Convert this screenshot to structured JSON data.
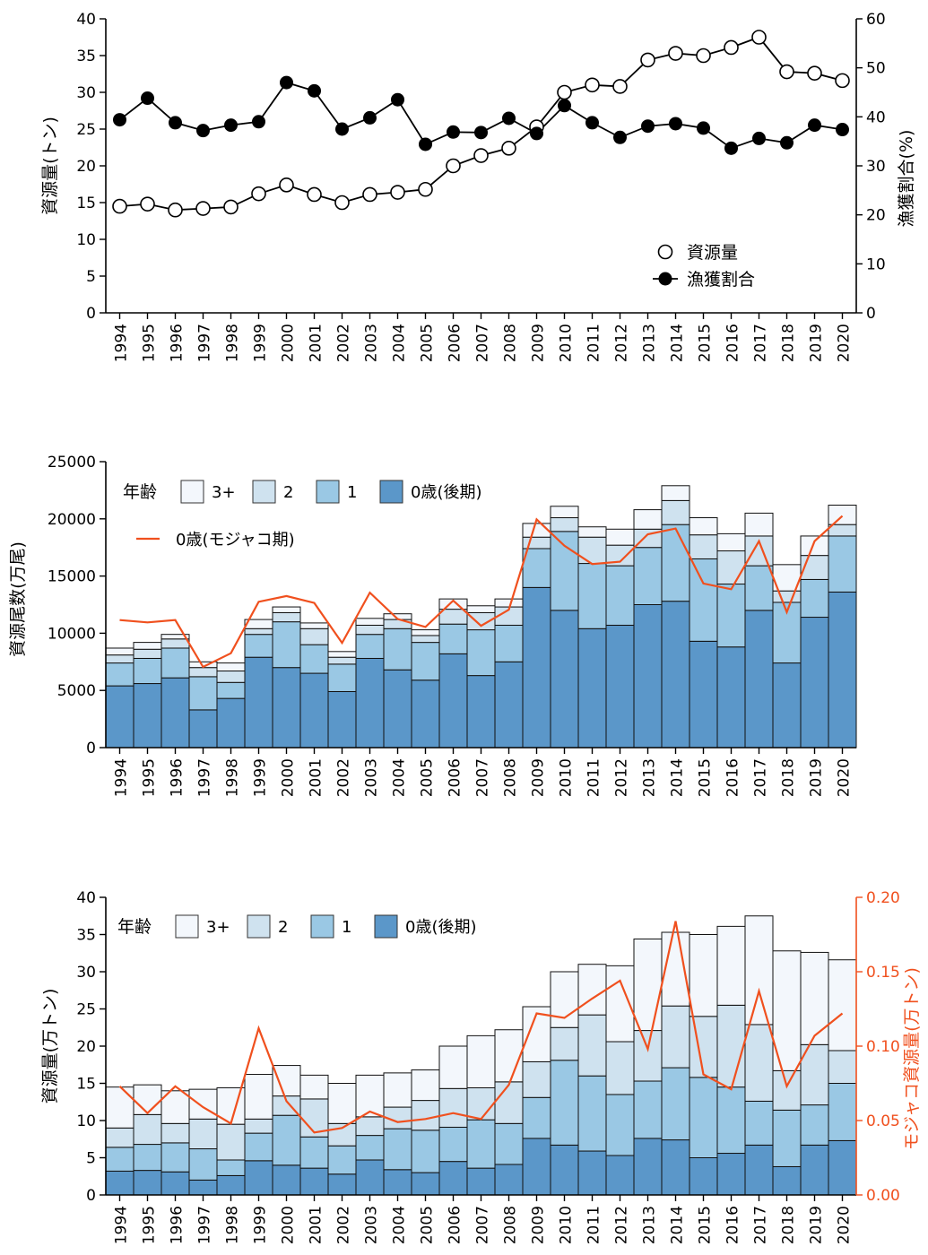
{
  "chart_data": [
    {
      "type": "line",
      "x": [
        "1994",
        "1995",
        "1996",
        "1997",
        "1998",
        "1999",
        "2000",
        "2001",
        "2002",
        "2003",
        "2004",
        "2005",
        "2006",
        "2007",
        "2008",
        "2009",
        "2010",
        "2011",
        "2012",
        "2013",
        "2014",
        "2015",
        "2016",
        "2017",
        "2018",
        "2019",
        "2020"
      ],
      "series": [
        {
          "name": "資源量",
          "axis": "left",
          "marker": "open-circle",
          "values": [
            14.5,
            14.8,
            14.0,
            14.2,
            14.4,
            16.2,
            17.4,
            16.1,
            15.0,
            16.1,
            16.4,
            16.8,
            20.0,
            21.4,
            22.4,
            25.3,
            30.0,
            31.0,
            30.8,
            34.4,
            35.3,
            35.0,
            36.1,
            37.5,
            32.8,
            32.6,
            31.6
          ]
        },
        {
          "name": "漁獲割合",
          "axis": "right",
          "marker": "filled-circle",
          "values": [
            39.4,
            43.8,
            38.8,
            37.2,
            38.3,
            39.0,
            47.0,
            45.3,
            37.5,
            39.8,
            43.5,
            34.4,
            36.9,
            36.8,
            39.7,
            36.6,
            42.3,
            38.8,
            35.8,
            38.1,
            38.6,
            37.7,
            33.6,
            35.6,
            34.7,
            38.3,
            37.4
          ]
        }
      ],
      "ylabel_left": "資源量(トン)",
      "ylabel_right": "漁獲割合(%)",
      "ylim_left": [
        0,
        40
      ],
      "yticks_left": [
        0,
        5,
        10,
        15,
        20,
        25,
        30,
        35,
        40
      ],
      "ylim_right": [
        0,
        60
      ],
      "yticks_right": [
        0,
        10,
        20,
        30,
        40,
        50,
        60
      ],
      "legend": [
        "資源量",
        "漁獲割合"
      ],
      "legend_position": "bottom-right",
      "grid": false
    },
    {
      "type": "bar",
      "stacked": true,
      "x": [
        "1994",
        "1995",
        "1996",
        "1997",
        "1998",
        "1999",
        "2000",
        "2001",
        "2002",
        "2003",
        "2004",
        "2005",
        "2006",
        "2007",
        "2008",
        "2009",
        "2010",
        "2011",
        "2012",
        "2013",
        "2014",
        "2015",
        "2016",
        "2017",
        "2018",
        "2019",
        "2020"
      ],
      "legend_title": "年齢",
      "series": [
        {
          "name": "0歳(後期)",
          "color": "#5b97c9",
          "values": [
            5400,
            5600,
            6100,
            3300,
            4300,
            7900,
            7000,
            6500,
            4900,
            7800,
            6800,
            5900,
            8200,
            6300,
            7500,
            14000,
            12000,
            10400,
            10700,
            12500,
            12800,
            9300,
            8800,
            12000,
            7400,
            11400,
            13600
          ]
        },
        {
          "name": "1",
          "color": "#9ac8e4",
          "values": [
            2000,
            2200,
            2600,
            2900,
            1400,
            2000,
            4000,
            2500,
            2400,
            2100,
            3600,
            3300,
            2600,
            4000,
            3200,
            3400,
            6900,
            5700,
            5200,
            5000,
            6700,
            7200,
            5500,
            3900,
            5300,
            3300,
            4900
          ]
        },
        {
          "name": "2",
          "color": "#cfe2ef",
          "values": [
            700,
            800,
            800,
            800,
            1000,
            500,
            800,
            1400,
            600,
            800,
            800,
            600,
            1300,
            1500,
            1600,
            1000,
            1200,
            2300,
            1800,
            1600,
            2100,
            2100,
            2900,
            2600,
            1000,
            2100,
            1000
          ]
        },
        {
          "name": "3+",
          "color": "#f3f7fc",
          "values": [
            600,
            600,
            400,
            500,
            700,
            800,
            500,
            500,
            500,
            600,
            500,
            500,
            900,
            600,
            700,
            1200,
            1000,
            900,
            1400,
            1700,
            1300,
            1500,
            1500,
            2000,
            2300,
            1700,
            1700
          ]
        }
      ],
      "line": {
        "name": "0歳(モジャコ期)",
        "color": "#f0501e",
        "values": [
          11150,
          10950,
          11150,
          7050,
          8250,
          12750,
          13250,
          12650,
          9150,
          13550,
          11250,
          10550,
          12850,
          10650,
          12050,
          19950,
          17650,
          16050,
          16250,
          18650,
          19150,
          14350,
          13850,
          18050,
          11850,
          18050,
          20250
        ]
      },
      "ylabel": "資源尾数(万尾)",
      "ylim": [
        0,
        25000
      ],
      "yticks": [
        0,
        5000,
        10000,
        15000,
        20000,
        25000
      ],
      "legend_position": "top-left",
      "grid": false
    },
    {
      "type": "bar",
      "stacked": true,
      "x": [
        "1994",
        "1995",
        "1996",
        "1997",
        "1998",
        "1999",
        "2000",
        "2001",
        "2002",
        "2003",
        "2004",
        "2005",
        "2006",
        "2007",
        "2008",
        "2009",
        "2010",
        "2011",
        "2012",
        "2013",
        "2014",
        "2015",
        "2016",
        "2017",
        "2018",
        "2019",
        "2020"
      ],
      "legend_title": "年齢",
      "series": [
        {
          "name": "0歳(後期)",
          "color": "#5b97c9",
          "values": [
            3.2,
            3.3,
            3.1,
            2.0,
            2.6,
            4.6,
            4.0,
            3.6,
            2.8,
            4.7,
            3.4,
            3.0,
            4.5,
            3.6,
            4.1,
            7.6,
            6.7,
            5.9,
            5.3,
            7.6,
            7.4,
            5.0,
            5.6,
            6.7,
            3.8,
            6.7,
            7.3
          ]
        },
        {
          "name": "1",
          "color": "#9ac8e4",
          "values": [
            3.2,
            3.5,
            3.9,
            4.2,
            2.1,
            3.7,
            6.7,
            4.2,
            3.8,
            3.3,
            5.5,
            5.7,
            4.6,
            6.5,
            5.5,
            5.5,
            11.4,
            10.1,
            8.2,
            7.7,
            9.7,
            10.8,
            8.9,
            5.9,
            7.6,
            5.4,
            7.7
          ]
        },
        {
          "name": "2",
          "color": "#cfe2ef",
          "values": [
            2.6,
            4.0,
            2.6,
            4.0,
            4.8,
            1.9,
            2.6,
            5.1,
            3.0,
            2.5,
            2.9,
            4.0,
            5.2,
            4.3,
            5.6,
            4.8,
            4.4,
            8.2,
            7.1,
            6.8,
            8.3,
            8.2,
            11.0,
            10.3,
            5.3,
            8.1,
            4.4
          ]
        },
        {
          "name": "3+",
          "color": "#f3f7fc",
          "values": [
            5.5,
            4.0,
            4.4,
            4.0,
            4.9,
            6.0,
            4.1,
            3.2,
            5.4,
            5.6,
            4.6,
            4.1,
            5.7,
            7.0,
            7.0,
            7.4,
            7.5,
            6.8,
            10.2,
            12.3,
            9.9,
            11.0,
            10.6,
            14.6,
            16.1,
            12.4,
            12.2
          ]
        }
      ],
      "line": {
        "name": "モジャコ資源量",
        "color": "#f0501e",
        "axis": "right",
        "values": [
          0.073,
          0.055,
          0.073,
          0.059,
          0.048,
          0.112,
          0.063,
          0.042,
          0.045,
          0.056,
          0.049,
          0.051,
          0.055,
          0.051,
          0.074,
          0.122,
          0.119,
          0.132,
          0.144,
          0.098,
          0.184,
          0.081,
          0.071,
          0.137,
          0.073,
          0.107,
          0.122
        ]
      },
      "ylabel_left": "資源量(万トン)",
      "ylabel_right": "モジャコ資源量(万トン)",
      "ylim_left": [
        0,
        40
      ],
      "yticks_left": [
        0,
        5,
        10,
        15,
        20,
        25,
        30,
        35,
        40
      ],
      "ylim_right": [
        0,
        0.2
      ],
      "yticks_right": [
        "0.00",
        "0.05",
        "0.10",
        "0.15",
        "0.20"
      ],
      "legend_position": "top-left",
      "grid": false
    }
  ]
}
